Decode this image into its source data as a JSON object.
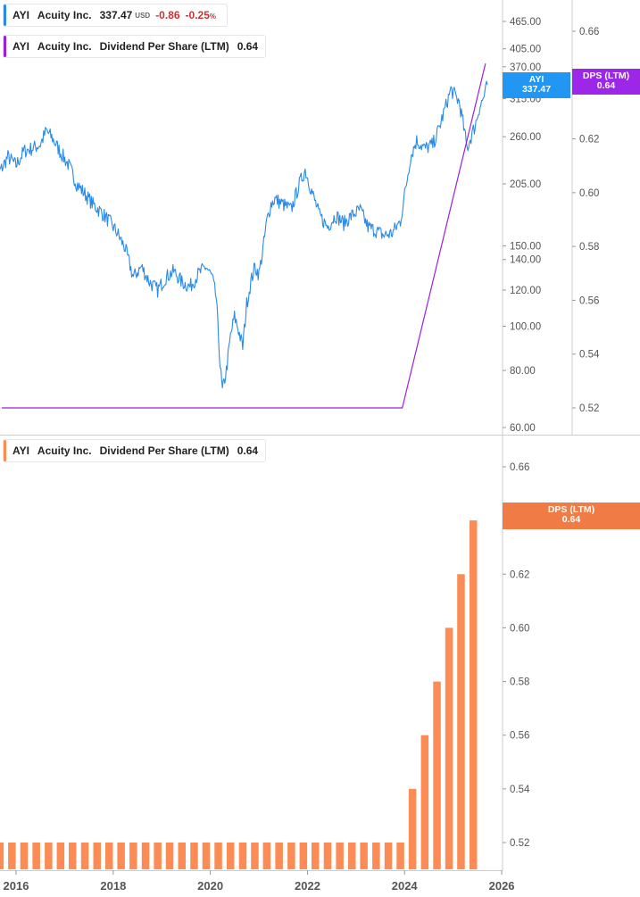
{
  "colors": {
    "price": "#2b8ae6",
    "dps_line": "#9b1fe0",
    "dps_bar": "#fb8c55",
    "badge_ayi": "#2196f3",
    "badge_dps_line": "#9c27e8",
    "badge_dps_bar": "#f07b45",
    "negative": "#d32f2f",
    "grid_axis": "#cccccc"
  },
  "legend_top": {
    "ticker": "AYI",
    "name": "Acuity Inc.",
    "price": "337.47",
    "currency": "USD",
    "change": "-0.86",
    "change_pct": "-0.25",
    "pct_sign": "%"
  },
  "legend_dps_line": {
    "ticker": "AYI",
    "name": "Acuity Inc.",
    "metric": "Dividend Per Share (LTM)",
    "value": "0.64"
  },
  "legend_dps_bar": {
    "ticker": "AYI",
    "name": "Acuity Inc.",
    "metric": "Dividend Per Share (LTM)",
    "value": "0.64"
  },
  "badges": {
    "ayi": {
      "label": "AYI",
      "value": "337.47"
    },
    "dps_line": {
      "label": "DPS (LTM)",
      "value": "0.64"
    },
    "dps_bar": {
      "label": "DPS (LTM)",
      "value": "0.64"
    }
  },
  "chart_data": [
    {
      "type": "line",
      "y_scale": "log",
      "ylim": [
        60,
        480
      ],
      "y_ticks": [
        "465.00",
        "405.00",
        "370.00",
        "315.00",
        "260.00",
        "205.00",
        "150.00",
        "140.00",
        "120.00",
        "100.00",
        "80.00",
        "60.00"
      ],
      "x_range": [
        "2015-07-01",
        "2025-10-15"
      ],
      "grid": false,
      "series": [
        {
          "name": "AYI",
          "points": [
            [
              "2015-07-01",
              200
            ],
            [
              "2015-09-01",
              218
            ],
            [
              "2015-11-01",
              235
            ],
            [
              "2016-01-01",
              225
            ],
            [
              "2016-03-01",
              242
            ],
            [
              "2016-05-01",
              245
            ],
            [
              "2016-07-01",
              250
            ],
            [
              "2016-08-15",
              268
            ],
            [
              "2016-10-01",
              258
            ],
            [
              "2016-12-01",
              240
            ],
            [
              "2017-02-01",
              225
            ],
            [
              "2017-04-01",
              205
            ],
            [
              "2017-06-01",
              195
            ],
            [
              "2017-08-01",
              185
            ],
            [
              "2017-10-01",
              178
            ],
            [
              "2017-12-01",
              170
            ],
            [
              "2018-02-01",
              160
            ],
            [
              "2018-04-01",
              148
            ],
            [
              "2018-06-01",
              128
            ],
            [
              "2018-08-01",
              135
            ],
            [
              "2018-10-01",
              125
            ],
            [
              "2018-12-01",
              120
            ],
            [
              "2019-02-01",
              128
            ],
            [
              "2019-04-01",
              132
            ],
            [
              "2019-06-01",
              125
            ],
            [
              "2019-08-01",
              122
            ],
            [
              "2019-10-01",
              130
            ],
            [
              "2019-12-01",
              135
            ],
            [
              "2020-01-15",
              128
            ],
            [
              "2020-02-15",
              115
            ],
            [
              "2020-03-15",
              82
            ],
            [
              "2020-04-01",
              72
            ],
            [
              "2020-05-01",
              80
            ],
            [
              "2020-06-01",
              95
            ],
            [
              "2020-07-01",
              105
            ],
            [
              "2020-08-01",
              98
            ],
            [
              "2020-09-01",
              90
            ],
            [
              "2020-10-01",
              112
            ],
            [
              "2020-11-01",
              125
            ],
            [
              "2020-12-01",
              135
            ],
            [
              "2021-01-01",
              130
            ],
            [
              "2021-02-01",
              148
            ],
            [
              "2021-03-01",
              170
            ],
            [
              "2021-04-01",
              185
            ],
            [
              "2021-05-01",
              190
            ],
            [
              "2021-07-01",
              185
            ],
            [
              "2021-09-01",
              180
            ],
            [
              "2021-11-01",
              205
            ],
            [
              "2021-12-15",
              220
            ],
            [
              "2022-02-01",
              198
            ],
            [
              "2022-04-01",
              175
            ],
            [
              "2022-06-01",
              165
            ],
            [
              "2022-08-01",
              175
            ],
            [
              "2022-10-01",
              168
            ],
            [
              "2022-12-01",
              175
            ],
            [
              "2023-02-01",
              180
            ],
            [
              "2023-04-01",
              165
            ],
            [
              "2023-06-01",
              162
            ],
            [
              "2023-08-01",
              158
            ],
            [
              "2023-10-01",
              160
            ],
            [
              "2023-12-01",
              170
            ],
            [
              "2024-01-15",
              205
            ],
            [
              "2024-02-15",
              235
            ],
            [
              "2024-04-01",
              255
            ],
            [
              "2024-06-01",
              245
            ],
            [
              "2024-08-01",
              250
            ],
            [
              "2024-09-15",
              270
            ],
            [
              "2024-11-01",
              300
            ],
            [
              "2024-12-15",
              330
            ],
            [
              "2025-01-15",
              320
            ],
            [
              "2025-02-15",
              310
            ],
            [
              "2025-03-15",
              280
            ],
            [
              "2025-04-15",
              245
            ],
            [
              "2025-05-15",
              260
            ],
            [
              "2025-06-15",
              275
            ],
            [
              "2025-07-15",
              300
            ],
            [
              "2025-08-15",
              315
            ],
            [
              "2025-09-15",
              337.47
            ]
          ]
        },
        {
          "name": "DPS (LTM)",
          "y_axis": "right",
          "ylim": [
            0.51,
            0.67
          ],
          "y_ticks": [
            "0.66",
            "0.62",
            "0.60",
            "0.58",
            "0.56",
            "0.54",
            "0.52"
          ],
          "points": [
            [
              "2015-09-15",
              0.52
            ],
            [
              "2023-12-15",
              0.52
            ],
            [
              "2025-09-01",
              0.648
            ]
          ]
        }
      ]
    },
    {
      "type": "bar",
      "ylim": [
        0.51,
        0.67
      ],
      "y_ticks": [
        "0.66",
        "0.62",
        "0.60",
        "0.58",
        "0.56",
        "0.54",
        "0.52"
      ],
      "x_ticks": [
        "2016",
        "2018",
        "2020",
        "2022",
        "2024",
        "2026"
      ],
      "grid": false,
      "series": [
        {
          "name": "Dividend Per Share (LTM)",
          "dates": [
            "2015-09-01",
            "2015-12-01",
            "2016-03-01",
            "2016-06-01",
            "2016-09-01",
            "2016-12-01",
            "2017-03-01",
            "2017-06-01",
            "2017-09-01",
            "2017-12-01",
            "2018-03-01",
            "2018-06-01",
            "2018-09-01",
            "2018-12-01",
            "2019-03-01",
            "2019-06-01",
            "2019-09-01",
            "2019-12-01",
            "2020-03-01",
            "2020-06-01",
            "2020-09-01",
            "2020-12-01",
            "2021-03-01",
            "2021-06-01",
            "2021-09-01",
            "2021-12-01",
            "2022-03-01",
            "2022-06-01",
            "2022-09-01",
            "2022-12-01",
            "2023-03-01",
            "2023-06-01",
            "2023-09-01",
            "2023-12-01",
            "2024-03-01",
            "2024-06-01",
            "2024-09-01",
            "2024-12-01",
            "2025-03-01",
            "2025-06-01"
          ],
          "values": [
            0.52,
            0.52,
            0.52,
            0.52,
            0.52,
            0.52,
            0.52,
            0.52,
            0.52,
            0.52,
            0.52,
            0.52,
            0.52,
            0.52,
            0.52,
            0.52,
            0.52,
            0.52,
            0.52,
            0.52,
            0.52,
            0.52,
            0.52,
            0.52,
            0.52,
            0.52,
            0.52,
            0.52,
            0.52,
            0.52,
            0.52,
            0.52,
            0.52,
            0.52,
            0.54,
            0.56,
            0.58,
            0.6,
            0.62,
            0.64
          ]
        }
      ]
    }
  ]
}
